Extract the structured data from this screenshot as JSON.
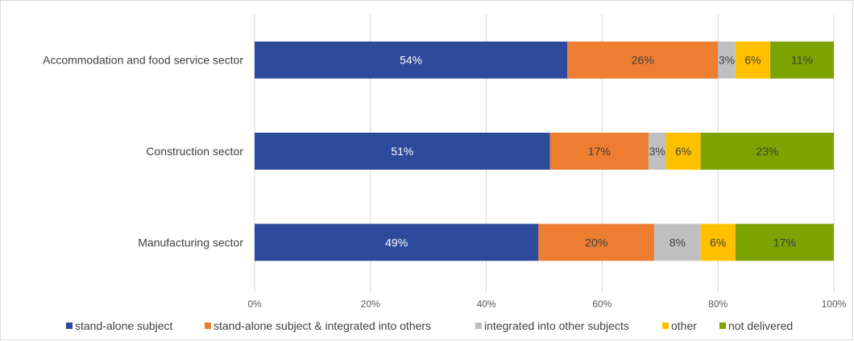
{
  "chart_data": {
    "type": "bar",
    "orientation": "horizontal",
    "stacked": true,
    "categories": [
      "Accommodation and food service sector",
      "Construction sector",
      "Manufacturing sector"
    ],
    "series": [
      {
        "name": "stand-alone subject",
        "color": "#2E4A9B",
        "values": [
          54,
          51,
          49
        ],
        "labels": [
          "54%",
          "51%",
          "49%"
        ],
        "label_color": "#ffffff"
      },
      {
        "name": "stand-alone subject & integrated into others",
        "color": "#ED7D31",
        "values": [
          26,
          17,
          20
        ],
        "labels": [
          "26%",
          "17%",
          "20%"
        ],
        "label_color": "#404040"
      },
      {
        "name": "integrated into other subjects",
        "color": "#BFBFBF",
        "values": [
          3,
          3,
          8
        ],
        "labels": [
          "3%",
          "3%",
          "8%"
        ],
        "label_color": "#404040"
      },
      {
        "name": "other",
        "color": "#FFC000",
        "values": [
          6,
          6,
          6
        ],
        "labels": [
          "6%",
          "6%",
          "6%"
        ],
        "label_color": "#404040"
      },
      {
        "name": "not delivered",
        "color": "#7CA300",
        "values": [
          11,
          23,
          17
        ],
        "labels": [
          "11%",
          "23%",
          "17%"
        ],
        "label_color": "#404040"
      }
    ],
    "x_ticks": [
      "0%",
      "20%",
      "40%",
      "60%",
      "80%",
      "100%"
    ],
    "xlim": [
      0,
      100
    ],
    "grid": true,
    "legend_position": "bottom"
  }
}
